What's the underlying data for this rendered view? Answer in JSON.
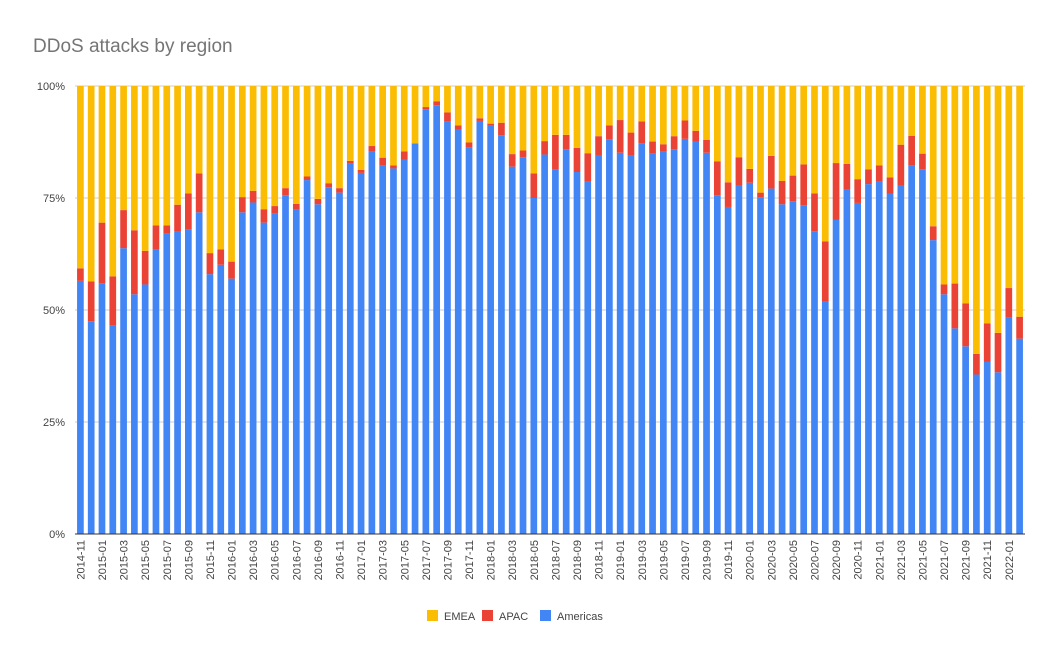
{
  "chart_data": {
    "type": "bar",
    "stacked": "percent",
    "title": "DDoS attacks by region",
    "xlabel": "",
    "ylabel": "",
    "ylim": [
      0,
      100
    ],
    "yticks": [
      "0%",
      "25%",
      "50%",
      "75%",
      "100%"
    ],
    "grid": true,
    "legend_position": "bottom",
    "categories": [
      "2014-11",
      "2014-12",
      "2015-01",
      "2015-02",
      "2015-03",
      "2015-04",
      "2015-05",
      "2015-06",
      "2015-07",
      "2015-08",
      "2015-09",
      "2015-10",
      "2015-11",
      "2015-12",
      "2016-01",
      "2016-02",
      "2016-03",
      "2016-04",
      "2016-05",
      "2016-06",
      "2016-07",
      "2016-08",
      "2016-09",
      "2016-10",
      "2016-11",
      "2016-12",
      "2017-01",
      "2017-02",
      "2017-03",
      "2017-04",
      "2017-05",
      "2017-06",
      "2017-07",
      "2017-08",
      "2017-09",
      "2017-10",
      "2017-11",
      "2017-12",
      "2018-01",
      "2018-02",
      "2018-03",
      "2018-04",
      "2018-05",
      "2018-06",
      "2018-07",
      "2018-08",
      "2018-09",
      "2018-10",
      "2018-11",
      "2018-12",
      "2019-01",
      "2019-02",
      "2019-03",
      "2019-04",
      "2019-05",
      "2019-06",
      "2019-07",
      "2019-08",
      "2019-09",
      "2019-10",
      "2019-11",
      "2019-12",
      "2020-01",
      "2020-02",
      "2020-03",
      "2020-04",
      "2020-05",
      "2020-06",
      "2020-07",
      "2020-08",
      "2020-09",
      "2020-10",
      "2020-11",
      "2020-12",
      "2021-01",
      "2021-02",
      "2021-03",
      "2021-04",
      "2021-05",
      "2021-06",
      "2021-07",
      "2021-08",
      "2021-09",
      "2021-10",
      "2021-11",
      "2021-12",
      "2022-01",
      "2022-02"
    ],
    "series": [
      {
        "name": "Americas",
        "color": "#4285f4",
        "values": [
          56.5,
          47.5,
          56,
          46.5,
          63.8,
          53.5,
          55.7,
          63.6,
          67,
          67.5,
          68,
          71.8,
          58,
          60.1,
          57,
          71.8,
          74,
          69.5,
          71.5,
          75.6,
          72.4,
          79,
          73.6,
          77.4,
          76.2,
          82.8,
          80.6,
          85.4,
          82.2,
          81.6,
          83.6,
          87.2,
          94.8,
          95.7,
          92.1,
          90.3,
          86.3,
          92.2,
          91.2,
          89,
          82,
          84.1,
          75,
          84.7,
          81.3,
          85.9,
          80.8,
          78.7,
          84.6,
          88.1,
          85.1,
          84.5,
          87.2,
          84.9,
          85.4,
          85.9,
          88.2,
          87.6,
          85.1,
          75.6,
          73,
          77.9,
          78.4,
          75.2,
          77.1,
          73.6,
          74.3,
          73.4,
          67.6,
          52,
          70.2,
          77,
          73.9,
          78.1,
          78.6,
          76,
          77.8,
          82.2,
          81.4,
          65.6,
          53.5,
          45.9,
          41.9,
          35.6,
          38.4,
          36.1,
          48.3,
          43.6
        ]
      },
      {
        "name": "APAC",
        "color": "#ea4335",
        "values": [
          2.8,
          8.9,
          13.5,
          11.0,
          8.5,
          14.3,
          7.5,
          5.3,
          1.9,
          6.0,
          8.0,
          8.7,
          4.7,
          3.4,
          3.8,
          3.4,
          2.6,
          3.0,
          1.7,
          1.6,
          1.3,
          0.8,
          1.2,
          0.9,
          1.0,
          0.5,
          0.7,
          1.2,
          1.8,
          0.7,
          1.8,
          0.0,
          0.5,
          0.9,
          2.0,
          0.9,
          1.1,
          0.6,
          0.4,
          2.8,
          2.8,
          1.5,
          5.5,
          3.0,
          7.8,
          3.2,
          5.4,
          6.3,
          4.2,
          3.1,
          7.3,
          5.1,
          4.9,
          2.7,
          1.6,
          2.9,
          4.1,
          2.4,
          2.9,
          7.6,
          5.5,
          6.2,
          3.1,
          1.0,
          7.3,
          5.2,
          5.7,
          9.1,
          8.4,
          13.3,
          12.6,
          5.6,
          5.3,
          3.3,
          3.7,
          3.6,
          9.1,
          6.7,
          3.5,
          3.1,
          2.2,
          10.0,
          9.6,
          4.6,
          8.6,
          8.8,
          6.6,
          4.9
        ]
      },
      {
        "name": "EMEA",
        "color": "#fbbc04",
        "values": [
          40.7,
          43.6,
          30.5,
          42.5,
          27.7,
          32.2,
          36.8,
          31.1,
          31.1,
          26.5,
          24.0,
          19.5,
          37.3,
          36.5,
          39.2,
          24.8,
          23.4,
          27.5,
          26.8,
          22.8,
          26.3,
          20.2,
          25.2,
          21.7,
          22.8,
          16.7,
          18.7,
          13.4,
          16.0,
          17.7,
          14.6,
          12.8,
          4.7,
          3.4,
          5.9,
          8.8,
          12.6,
          7.2,
          8.4,
          8.2,
          15.2,
          14.4,
          19.5,
          12.3,
          10.9,
          10.9,
          13.8,
          15.0,
          11.2,
          8.8,
          7.6,
          10.4,
          7.9,
          12.4,
          13.0,
          11.2,
          7.7,
          10.0,
          12.0,
          16.8,
          21.5,
          15.9,
          18.5,
          23.8,
          15.6,
          21.2,
          20.0,
          17.5,
          24.0,
          34.7,
          17.2,
          17.4,
          20.8,
          18.6,
          17.7,
          20.4,
          13.1,
          11.1,
          15.1,
          31.3,
          44.3,
          44.1,
          48.5,
          59.8,
          53.0,
          55.1,
          45.1,
          51.5
        ]
      }
    ],
    "legend": [
      "EMEA",
      "APAC",
      "Americas"
    ]
  }
}
